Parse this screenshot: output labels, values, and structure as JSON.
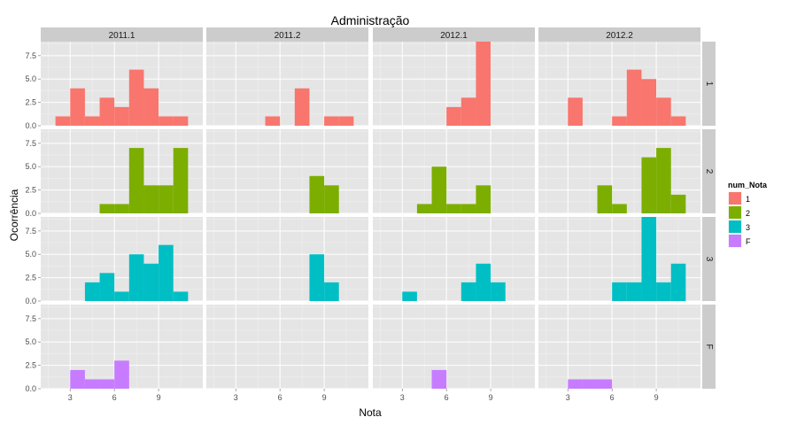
{
  "chart_data": {
    "type": "bar",
    "title": "Administração",
    "xlabel": "Nota",
    "ylabel": "Ocorrência",
    "facet_cols": [
      "2011.1",
      "2011.2",
      "2012.1",
      "2012.2"
    ],
    "facet_rows": [
      "1",
      "2",
      "3",
      "F"
    ],
    "x_ticks": [
      3,
      6,
      9
    ],
    "y_ticks": [
      0.0,
      2.5,
      5.0,
      7.5
    ],
    "y_tick_labels": [
      "0.0",
      "2.5",
      "5.0",
      "7.5"
    ],
    "xlim": [
      1,
      12
    ],
    "ylim": [
      0,
      9
    ],
    "bin_width": 1,
    "grid": true,
    "legend": {
      "title": "num_Nota",
      "position": "right",
      "entries": [
        {
          "label": "1",
          "color": "#F8766D"
        },
        {
          "label": "2",
          "color": "#7CAE00"
        },
        {
          "label": "3",
          "color": "#00BFC4"
        },
        {
          "label": "F",
          "color": "#C77CFF"
        }
      ]
    },
    "panels": [
      {
        "row": "1",
        "col": "2011.1",
        "bins": [
          {
            "x": 2,
            "count": 1
          },
          {
            "x": 3,
            "count": 4
          },
          {
            "x": 4,
            "count": 1
          },
          {
            "x": 5,
            "count": 3
          },
          {
            "x": 6,
            "count": 2
          },
          {
            "x": 7,
            "count": 6
          },
          {
            "x": 8,
            "count": 4
          },
          {
            "x": 9,
            "count": 1
          },
          {
            "x": 10,
            "count": 1
          }
        ]
      },
      {
        "row": "1",
        "col": "2011.2",
        "bins": [
          {
            "x": 5,
            "count": 1
          },
          {
            "x": 7,
            "count": 4
          },
          {
            "x": 9,
            "count": 1
          },
          {
            "x": 10,
            "count": 1
          }
        ]
      },
      {
        "row": "1",
        "col": "2012.1",
        "bins": [
          {
            "x": 6,
            "count": 2
          },
          {
            "x": 7,
            "count": 3
          },
          {
            "x": 8,
            "count": 9
          }
        ]
      },
      {
        "row": "1",
        "col": "2012.2",
        "bins": [
          {
            "x": 3,
            "count": 3
          },
          {
            "x": 6,
            "count": 1
          },
          {
            "x": 7,
            "count": 6
          },
          {
            "x": 8,
            "count": 5
          },
          {
            "x": 9,
            "count": 3
          },
          {
            "x": 10,
            "count": 1
          }
        ]
      },
      {
        "row": "2",
        "col": "2011.1",
        "bins": [
          {
            "x": 5,
            "count": 1
          },
          {
            "x": 6,
            "count": 1
          },
          {
            "x": 7,
            "count": 7
          },
          {
            "x": 8,
            "count": 3
          },
          {
            "x": 9,
            "count": 3
          },
          {
            "x": 10,
            "count": 7
          }
        ]
      },
      {
        "row": "2",
        "col": "2011.2",
        "bins": [
          {
            "x": 8,
            "count": 4
          },
          {
            "x": 9,
            "count": 3
          }
        ]
      },
      {
        "row": "2",
        "col": "2012.1",
        "bins": [
          {
            "x": 4,
            "count": 1
          },
          {
            "x": 5,
            "count": 5
          },
          {
            "x": 6,
            "count": 1
          },
          {
            "x": 7,
            "count": 1
          },
          {
            "x": 8,
            "count": 3
          }
        ]
      },
      {
        "row": "2",
        "col": "2012.2",
        "bins": [
          {
            "x": 5,
            "count": 3
          },
          {
            "x": 6,
            "count": 1
          },
          {
            "x": 8,
            "count": 6
          },
          {
            "x": 9,
            "count": 7
          },
          {
            "x": 10,
            "count": 2
          }
        ]
      },
      {
        "row": "3",
        "col": "2011.1",
        "bins": [
          {
            "x": 4,
            "count": 2
          },
          {
            "x": 5,
            "count": 3
          },
          {
            "x": 6,
            "count": 1
          },
          {
            "x": 7,
            "count": 5
          },
          {
            "x": 8,
            "count": 4
          },
          {
            "x": 9,
            "count": 6
          },
          {
            "x": 10,
            "count": 1
          }
        ]
      },
      {
        "row": "3",
        "col": "2011.2",
        "bins": [
          {
            "x": 8,
            "count": 5
          },
          {
            "x": 9,
            "count": 2
          }
        ]
      },
      {
        "row": "3",
        "col": "2012.1",
        "bins": [
          {
            "x": 3,
            "count": 1
          },
          {
            "x": 7,
            "count": 2
          },
          {
            "x": 8,
            "count": 4
          },
          {
            "x": 9,
            "count": 2
          }
        ]
      },
      {
        "row": "3",
        "col": "2012.2",
        "bins": [
          {
            "x": 6,
            "count": 2
          },
          {
            "x": 7,
            "count": 2
          },
          {
            "x": 8,
            "count": 9
          },
          {
            "x": 9,
            "count": 2
          },
          {
            "x": 10,
            "count": 4
          }
        ]
      },
      {
        "row": "F",
        "col": "2011.1",
        "bins": [
          {
            "x": 3,
            "count": 2
          },
          {
            "x": 4,
            "count": 1
          },
          {
            "x": 5,
            "count": 1
          },
          {
            "x": 6,
            "count": 3
          }
        ]
      },
      {
        "row": "F",
        "col": "2011.2",
        "bins": []
      },
      {
        "row": "F",
        "col": "2012.1",
        "bins": [
          {
            "x": 5,
            "count": 2
          }
        ]
      },
      {
        "row": "F",
        "col": "2012.2",
        "bins": [
          {
            "x": 3,
            "count": 1
          },
          {
            "x": 4,
            "count": 1
          },
          {
            "x": 5,
            "count": 1
          }
        ]
      }
    ]
  }
}
